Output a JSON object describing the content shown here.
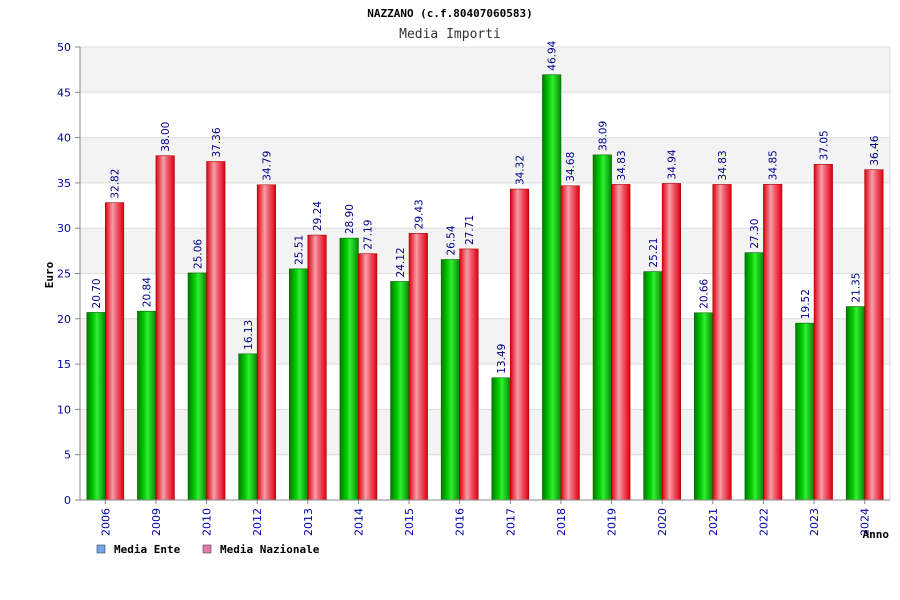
{
  "chart_data": {
    "type": "bar",
    "title": "NAZZANO (c.f.80407060583)",
    "subtitle": "Media Importi",
    "ylabel": "Euro",
    "xlabel": "Anno",
    "ylim": [
      0,
      50
    ],
    "yticks": [
      "0",
      "5",
      "10",
      "15",
      "20",
      "25",
      "30",
      "35",
      "40",
      "45",
      "50"
    ],
    "grid": true,
    "legend_position": "bottom-left",
    "categories": [
      "2006",
      "2009",
      "2010",
      "2012",
      "2013",
      "2014",
      "2015",
      "2016",
      "2017",
      "2018",
      "2019",
      "2020",
      "2021",
      "2022",
      "2023",
      "2024"
    ],
    "series": [
      {
        "name": "Media Ente",
        "color": "#00bb00",
        "legend_color": "#6fa8e8",
        "values": [
          20.7,
          20.84,
          25.06,
          16.13,
          25.51,
          28.9,
          24.12,
          26.54,
          13.49,
          46.94,
          38.09,
          25.21,
          20.66,
          27.3,
          19.52,
          21.35
        ],
        "labels": [
          "20.70",
          "20.84",
          "25.06",
          "16.13",
          "25.51",
          "28.90",
          "24.12",
          "26.54",
          "13.49",
          "46.94",
          "38.09",
          "25.21",
          "20.66",
          "27.30",
          "19.52",
          "21.35"
        ]
      },
      {
        "name": "Media Nazionale",
        "color": "#ee1122",
        "legend_color": "#e07aa8",
        "values": [
          32.82,
          38.0,
          37.36,
          34.79,
          29.24,
          27.19,
          29.43,
          27.71,
          34.32,
          34.68,
          34.83,
          34.94,
          34.83,
          34.85,
          37.05,
          36.46
        ],
        "labels": [
          "32.82",
          "38.00",
          "37.36",
          "34.79",
          "29.24",
          "27.19",
          "29.43",
          "27.71",
          "34.32",
          "34.68",
          "34.83",
          "34.94",
          "34.83",
          "34.85",
          "37.05",
          "36.46"
        ]
      }
    ]
  }
}
